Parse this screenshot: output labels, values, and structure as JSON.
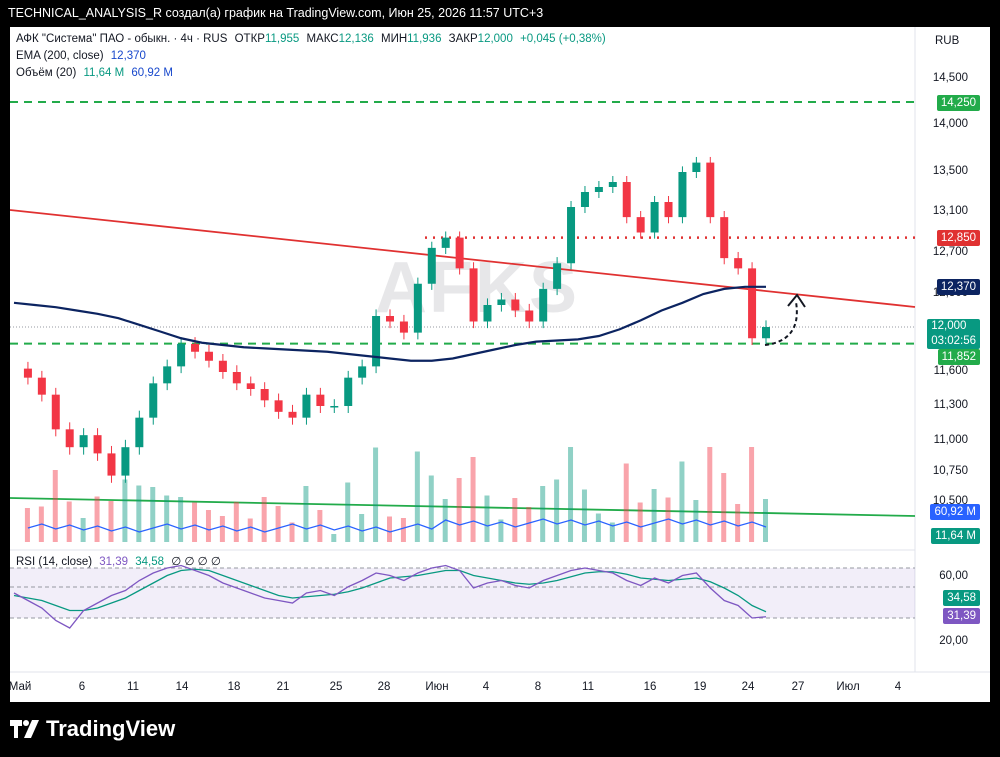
{
  "header": {
    "text": "TECHNICAL_ANALYSIS_R создал(а) график на TradingView.com, Июн 25, 2026 11:57 UTC+3"
  },
  "legend": {
    "symbol": "АФК \"Система\" ПАО - обыкн. · 4ч · RUS",
    "open_label": "ОТКР",
    "open": "11,955",
    "high_label": "МАКС",
    "high": "12,136",
    "low_label": "МИН",
    "low": "11,936",
    "close_label": "ЗАКР",
    "close": "12,000",
    "change": "+0,045 (+0,38%)",
    "ema_label": "EMA (200, close)",
    "ema_value": "12,370",
    "vol_label": "Объём (20)",
    "vol_value1": "11,64 M",
    "vol_value2": "60,92 M",
    "rsi_label": "RSI (14, close)",
    "rsi_value1": "31,39",
    "rsi_value2": "34,58",
    "rsi_extra": "∅ ∅ ∅ ∅"
  },
  "currency": "RUB",
  "watermark": "AFKS",
  "price_boxes": {
    "level_top": "14,250",
    "level_mid": "12,850",
    "ema": "12,370",
    "last_price": "12,000",
    "countdown": "03:02:56",
    "level_low": "11,852",
    "vol_ma": "60,92 M",
    "vol_last": "11,64 M",
    "rsi_ma": "34,58",
    "rsi_last": "31,39"
  },
  "colors": {
    "up": "#089981",
    "down": "#f23645",
    "ema": "#0c2461",
    "trend": "#e03131",
    "support": "#22ab4a",
    "vol_line": "#2962ff",
    "rsi": "#7e57c2",
    "dotted": "#e03131"
  },
  "chart_data": {
    "type": "candlestick",
    "title": "АФК \"Система\" ПАО - обыкн. · 4ч · RUS",
    "currency": "RUB",
    "x_ticks": [
      "Май",
      "6",
      "11",
      "14",
      "18",
      "21",
      "25",
      "28",
      "Июн",
      "4",
      "8",
      "11",
      "16",
      "19",
      "24",
      "27",
      "Июл",
      "4"
    ],
    "y_ticks": [
      14.5,
      14.0,
      13.5,
      13.1,
      12.7,
      12.3,
      12.0,
      11.6,
      11.3,
      11.0,
      10.75,
      10.5
    ],
    "y_tick_labels": [
      "14,500",
      "14,000",
      "13,500",
      "13,100",
      "12,700",
      "12,300",
      "12,000",
      "11,600",
      "11,300",
      "11,000",
      "10,750",
      "10,500"
    ],
    "price_path": [
      11.63,
      11.55,
      11.4,
      11.1,
      10.95,
      11.05,
      10.9,
      10.72,
      10.95,
      11.2,
      11.5,
      11.65,
      11.85,
      11.78,
      11.7,
      11.6,
      11.5,
      11.45,
      11.35,
      11.25,
      11.2,
      11.4,
      11.3,
      11.3,
      11.55,
      11.65,
      12.1,
      12.05,
      11.95,
      12.4,
      12.75,
      12.85,
      12.55,
      12.05,
      12.2,
      12.25,
      12.15,
      12.05,
      12.35,
      12.6,
      13.15,
      13.3,
      13.35,
      13.4,
      13.05,
      12.9,
      13.2,
      13.05,
      13.5,
      13.6,
      13.05,
      12.65,
      12.55,
      11.9,
      12.0
    ],
    "ema_200": [
      12.22,
      12.2,
      12.18,
      12.15,
      12.12,
      12.08,
      12.02,
      11.96,
      11.9,
      11.86,
      11.84,
      11.82,
      11.81,
      11.8,
      11.79,
      11.78,
      11.76,
      11.74,
      11.72,
      11.7,
      11.7,
      11.72,
      11.76,
      11.8,
      11.84,
      11.87,
      11.88,
      11.89,
      11.92,
      11.98,
      12.06,
      12.15,
      12.22,
      12.3,
      12.35,
      12.37,
      12.37
    ],
    "levels": {
      "resistance_top": 14.25,
      "resistance_mid": 12.85,
      "support": 11.852,
      "last": 12.0
    },
    "volume": {
      "label": "Объём (20)",
      "last": "11,64 M",
      "ma": "60,92 M"
    },
    "rsi": {
      "label": "RSI (14, close)",
      "value": 31.39,
      "ma": 34.58,
      "bands": [
        70,
        50,
        30
      ],
      "ticks": [
        "60,00",
        "20,00"
      ]
    },
    "annotations": [
      "dotted arrow projecting bounce to ~12.30"
    ]
  }
}
